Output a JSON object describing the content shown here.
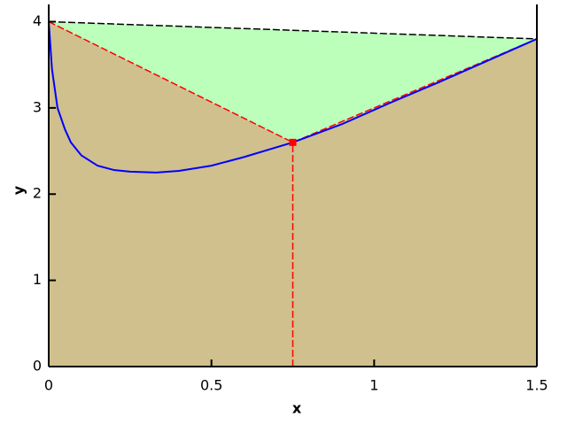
{
  "chart_data": {
    "type": "line",
    "xlabel": "x",
    "ylabel": "y",
    "xlim": [
      0,
      1.5
    ],
    "ylim": [
      0,
      4.2
    ],
    "xticks": [
      0,
      0.5,
      1,
      1.5
    ],
    "yticks": [
      0,
      1,
      2,
      3,
      4
    ],
    "fills": [
      {
        "color": "#cfc08e",
        "x": [
          0,
          0,
          0.75,
          1.5,
          1.5
        ],
        "values": [
          0,
          4,
          2.6,
          3.8,
          0
        ]
      },
      {
        "color": "#bbffbb",
        "x": [
          0,
          1.5,
          0.75
        ],
        "values": [
          4,
          3.8,
          2.6
        ]
      }
    ],
    "series": [
      {
        "color": "#000000",
        "dashed": true,
        "x": [
          0,
          1.5
        ],
        "values": [
          4,
          3.8
        ]
      },
      {
        "color": "#ff0000",
        "dashed": true,
        "x": [
          0,
          0.75,
          1.5
        ],
        "values": [
          4,
          2.6,
          3.8
        ]
      },
      {
        "color": "#ff0000",
        "dashed": true,
        "x": [
          0.75,
          0.75
        ],
        "values": [
          0,
          2.6
        ]
      },
      {
        "color": "#0000ff",
        "dashed": false,
        "x": [
          0,
          0.01,
          0.027,
          0.05,
          0.068,
          0.1,
          0.15,
          0.2,
          0.25,
          0.33,
          0.4,
          0.5,
          0.6,
          0.75,
          0.9,
          1.05,
          1.2,
          1.35,
          1.5
        ],
        "values": [
          4,
          3.45,
          3.0,
          2.75,
          2.6,
          2.45,
          2.33,
          2.28,
          2.26,
          2.25,
          2.27,
          2.33,
          2.43,
          2.6,
          2.81,
          3.06,
          3.3,
          3.55,
          3.8
        ]
      },
      {
        "color": "#ff0000",
        "marker": "square",
        "x": [
          0.75
        ],
        "values": [
          2.6
        ]
      }
    ]
  }
}
